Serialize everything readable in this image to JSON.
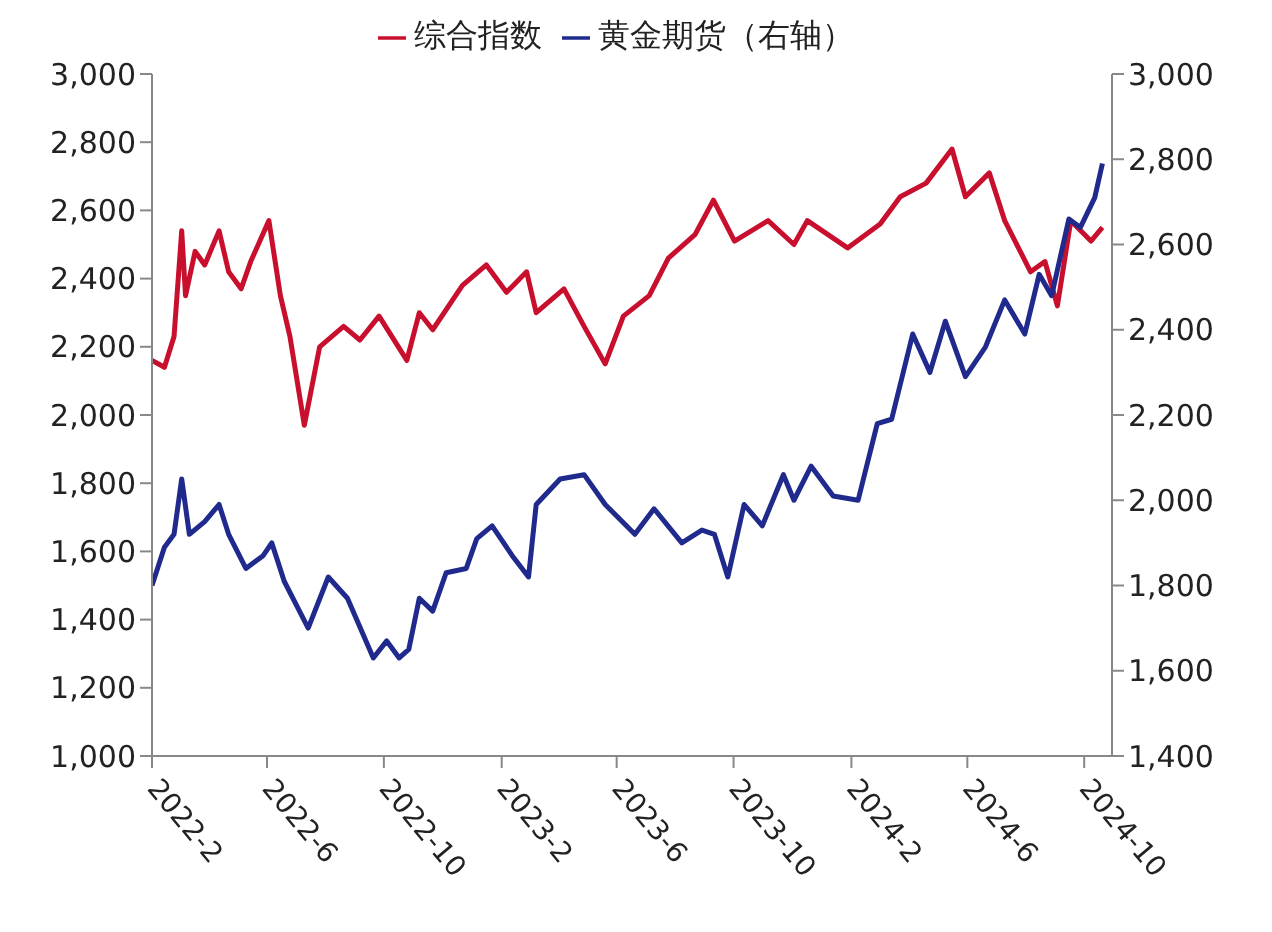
{
  "chart_data": {
    "type": "line",
    "legend": "top",
    "marker": "none",
    "line_style": "solid",
    "xlim": [
      "2022-02-01",
      "2024-10-30"
    ],
    "xticks": [
      {
        "value": "2022-02-01",
        "label": "2022-2"
      },
      {
        "value": "2022-06-01",
        "label": "2022-6"
      },
      {
        "value": "2022-10-01",
        "label": "2022-10"
      },
      {
        "value": "2023-02-01",
        "label": "2023-2"
      },
      {
        "value": "2023-06-01",
        "label": "2023-6"
      },
      {
        "value": "2023-10-01",
        "label": "2023-10"
      },
      {
        "value": "2024-02-01",
        "label": "2024-2"
      },
      {
        "value": "2024-06-01",
        "label": "2024-6"
      },
      {
        "value": "2024-10-01",
        "label": "2024-10"
      }
    ],
    "ylim": [
      1000,
      3000
    ],
    "yticks": [
      {
        "value": 1000,
        "label": "1,000"
      },
      {
        "value": 1200,
        "label": "1,200"
      },
      {
        "value": 1400,
        "label": "1,400"
      },
      {
        "value": 1600,
        "label": "1,600"
      },
      {
        "value": 1800,
        "label": "1,800"
      },
      {
        "value": 2000,
        "label": "2,000"
      },
      {
        "value": 2200,
        "label": "2,200"
      },
      {
        "value": 2400,
        "label": "2,400"
      },
      {
        "value": 2600,
        "label": "2,600"
      },
      {
        "value": 2800,
        "label": "2,800"
      },
      {
        "value": 3000,
        "label": "3,000"
      }
    ],
    "y2lim": [
      1400,
      3000
    ],
    "y2ticks": [
      {
        "value": 1400,
        "label": "1,400"
      },
      {
        "value": 1600,
        "label": "1,600"
      },
      {
        "value": 1800,
        "label": "1,800"
      },
      {
        "value": 2000,
        "label": "2,000"
      },
      {
        "value": 2200,
        "label": "2,200"
      },
      {
        "value": 2400,
        "label": "2,400"
      },
      {
        "value": 2600,
        "label": "2,600"
      },
      {
        "value": 2800,
        "label": "2,800"
      },
      {
        "value": 3000,
        "label": "3,000"
      }
    ],
    "series": [
      {
        "name": "综合指数",
        "color": "#c8102e",
        "x": [
          "2022-02-01",
          "2022-02-14",
          "2022-02-24",
          "2022-03-04",
          "2022-03-08",
          "2022-03-18",
          "2022-03-28",
          "2022-04-12",
          "2022-04-22",
          "2022-05-05",
          "2022-05-15",
          "2022-06-03",
          "2022-06-15",
          "2022-06-25",
          "2022-07-10",
          "2022-07-26",
          "2022-08-20",
          "2022-09-06",
          "2022-09-26",
          "2022-10-25",
          "2022-11-07",
          "2022-11-21",
          "2022-12-22",
          "2023-01-16",
          "2023-02-06",
          "2023-02-27",
          "2023-03-09",
          "2023-04-07",
          "2023-04-28",
          "2023-05-20",
          "2023-06-08",
          "2023-07-05",
          "2023-07-25",
          "2023-08-22",
          "2023-09-10",
          "2023-10-02",
          "2023-11-06",
          "2023-12-03",
          "2023-12-17",
          "2024-01-28",
          "2024-03-02",
          "2024-03-23",
          "2024-04-19",
          "2024-05-16",
          "2024-05-30",
          "2024-06-24",
          "2024-07-10",
          "2024-08-06",
          "2024-08-21",
          "2024-09-03",
          "2024-09-17",
          "2024-10-08",
          "2024-10-20"
        ],
        "values": [
          2160,
          2140,
          2230,
          2540,
          2350,
          2480,
          2440,
          2540,
          2420,
          2370,
          2450,
          2570,
          2350,
          2230,
          1970,
          2200,
          2260,
          2220,
          2290,
          2160,
          2300,
          2250,
          2380,
          2440,
          2360,
          2420,
          2300,
          2370,
          2260,
          2150,
          2290,
          2350,
          2460,
          2530,
          2630,
          2510,
          2570,
          2500,
          2570,
          2490,
          2560,
          2640,
          2680,
          2780,
          2640,
          2710,
          2570,
          2420,
          2450,
          2320,
          2570,
          2510,
          2550
        ]
      },
      {
        "name": "黄金期货（右轴）",
        "color": "#1f2a8c",
        "axis": "y2",
        "x": [
          "2022-02-01",
          "2022-02-14",
          "2022-02-24",
          "2022-03-04",
          "2022-03-12",
          "2022-03-28",
          "2022-04-12",
          "2022-04-22",
          "2022-05-10",
          "2022-05-28",
          "2022-06-06",
          "2022-06-19",
          "2022-07-14",
          "2022-08-04",
          "2022-08-24",
          "2022-09-20",
          "2022-10-04",
          "2022-10-17",
          "2022-10-27",
          "2022-11-07",
          "2022-11-21",
          "2022-12-05",
          "2022-12-26",
          "2023-01-06",
          "2023-01-22",
          "2023-02-12",
          "2023-03-01",
          "2023-03-09",
          "2023-04-03",
          "2023-04-28",
          "2023-05-20",
          "2023-06-20",
          "2023-07-10",
          "2023-08-08",
          "2023-08-29",
          "2023-09-11",
          "2023-09-25",
          "2023-10-12",
          "2023-10-31",
          "2023-11-22",
          "2023-12-03",
          "2023-12-21",
          "2024-01-13",
          "2024-02-08",
          "2024-02-28",
          "2024-03-14",
          "2024-04-05",
          "2024-04-23",
          "2024-05-09",
          "2024-05-30",
          "2024-06-20",
          "2024-07-10",
          "2024-07-31",
          "2024-08-15",
          "2024-08-28",
          "2024-09-15",
          "2024-09-27",
          "2024-10-12",
          "2024-10-20"
        ],
        "values": [
          1800,
          1890,
          1920,
          2050,
          1920,
          1950,
          1990,
          1920,
          1840,
          1870,
          1900,
          1810,
          1700,
          1820,
          1770,
          1630,
          1670,
          1630,
          1650,
          1770,
          1740,
          1830,
          1840,
          1910,
          1940,
          1870,
          1820,
          1990,
          2050,
          2060,
          1990,
          1920,
          1980,
          1900,
          1930,
          1920,
          1820,
          1990,
          1940,
          2060,
          2000,
          2080,
          2010,
          2000,
          2180,
          2190,
          2390,
          2300,
          2420,
          2290,
          2360,
          2470,
          2390,
          2530,
          2480,
          2660,
          2640,
          2710,
          2790
        ]
      }
    ]
  }
}
